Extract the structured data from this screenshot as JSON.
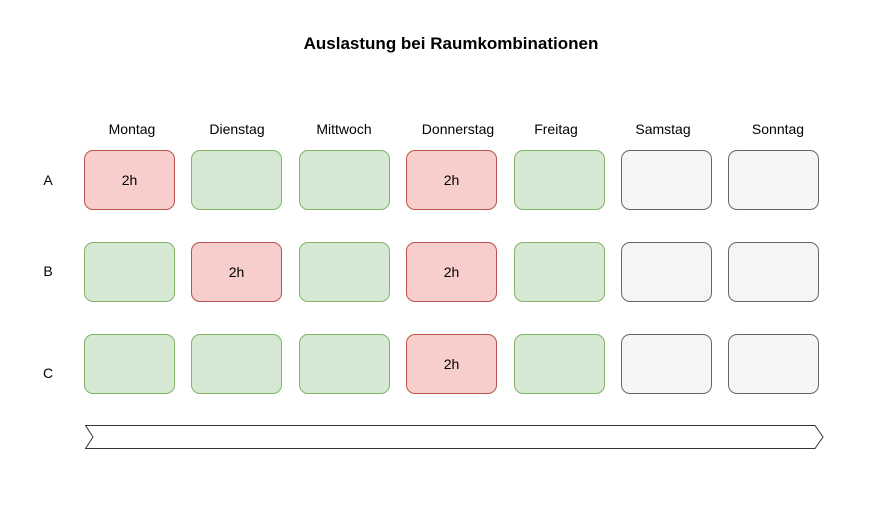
{
  "title": "Auslastung bei Raumkombinationen",
  "days": [
    "Montag",
    "Dienstag",
    "Mittwoch",
    "Donnerstag",
    "Freitag",
    "Samstag",
    "Sonntag"
  ],
  "rooms": [
    {
      "label": "A",
      "cells": [
        {
          "status": "busy",
          "text": "2h"
        },
        {
          "status": "free",
          "text": ""
        },
        {
          "status": "free",
          "text": ""
        },
        {
          "status": "busy",
          "text": "2h"
        },
        {
          "status": "free",
          "text": ""
        },
        {
          "status": "closed",
          "text": ""
        },
        {
          "status": "closed",
          "text": ""
        }
      ]
    },
    {
      "label": "B",
      "cells": [
        {
          "status": "free",
          "text": ""
        },
        {
          "status": "busy",
          "text": "2h"
        },
        {
          "status": "free",
          "text": ""
        },
        {
          "status": "busy",
          "text": "2h"
        },
        {
          "status": "free",
          "text": ""
        },
        {
          "status": "closed",
          "text": ""
        },
        {
          "status": "closed",
          "text": ""
        }
      ]
    },
    {
      "label": "C",
      "cells": [
        {
          "status": "free",
          "text": ""
        },
        {
          "status": "free",
          "text": ""
        },
        {
          "status": "free",
          "text": ""
        },
        {
          "status": "busy",
          "text": "2h"
        },
        {
          "status": "free",
          "text": ""
        },
        {
          "status": "closed",
          "text": ""
        },
        {
          "status": "closed",
          "text": ""
        }
      ]
    }
  ],
  "colors": {
    "free_fill": "#d5e8d4",
    "free_stroke": "#82b366",
    "busy_fill": "#f8cecc",
    "busy_stroke": "#b85450",
    "closed_fill": "#f5f5f5",
    "closed_stroke": "#666666"
  }
}
